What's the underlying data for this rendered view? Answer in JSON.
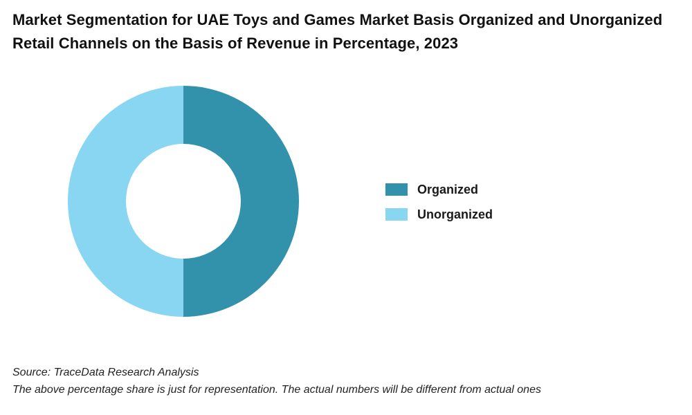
{
  "chart_data": {
    "type": "pie",
    "title": "Market Segmentation for UAE Toys and Games Market Basis Organized and Unorganized Retail Channels on the Basis of Revenue in Percentage, 2023",
    "categories": [
      "Organized",
      "Unorganized"
    ],
    "values": [
      50,
      50
    ],
    "colors": [
      "#3291ab",
      "#89d6f2"
    ],
    "donut": true,
    "legend_position": "right"
  },
  "footer": {
    "source": "Source: TraceData Research Analysis",
    "note": "The above percentage share is just for representation. The actual numbers will be different from actual ones"
  }
}
